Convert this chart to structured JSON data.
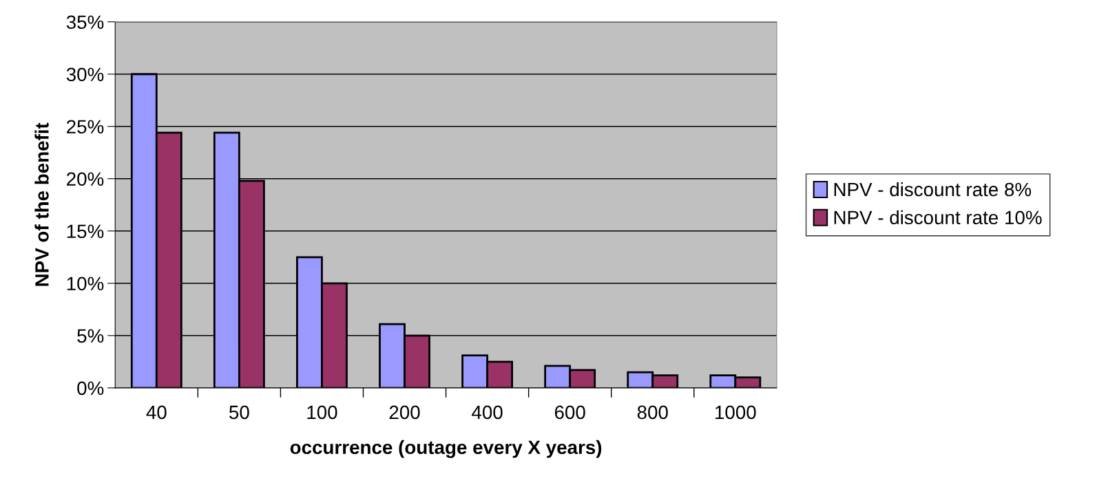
{
  "chart_data": {
    "type": "bar",
    "xlabel": "occurrence (outage every X years)",
    "ylabel": "NPV of the benefit",
    "categories": [
      "40",
      "50",
      "100",
      "200",
      "400",
      "600",
      "800",
      "1000"
    ],
    "series": [
      {
        "name": "NPV - discount rate 8%",
        "color": "#9999ff",
        "values": [
          30,
          24.4,
          12.5,
          6.1,
          3.1,
          2.1,
          1.5,
          1.2
        ]
      },
      {
        "name": "NPV - discount rate 10%",
        "color": "#993366",
        "values": [
          24.4,
          19.8,
          10,
          5.0,
          2.5,
          1.7,
          1.2,
          1.0
        ]
      }
    ],
    "ylim": [
      0,
      35
    ],
    "yticks": [
      {
        "value": 0,
        "label": "0%"
      },
      {
        "value": 5,
        "label": "5%"
      },
      {
        "value": 10,
        "label": "10%"
      },
      {
        "value": 15,
        "label": "15%"
      },
      {
        "value": 20,
        "label": "20%"
      },
      {
        "value": 25,
        "label": "25%"
      },
      {
        "value": 30,
        "label": "30%"
      },
      {
        "value": 35,
        "label": "35%"
      }
    ],
    "grid": "y",
    "legend": "right"
  }
}
